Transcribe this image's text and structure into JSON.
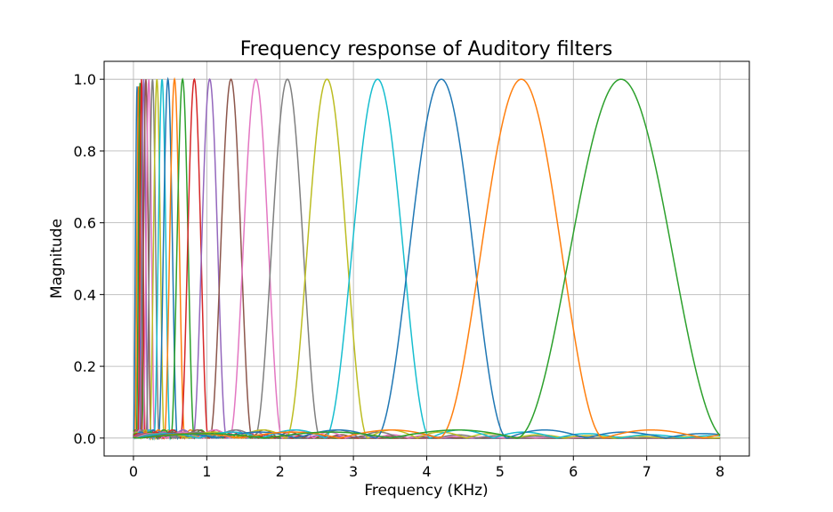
{
  "chart_data": {
    "type": "line",
    "title": "Frequency response of Auditory filters",
    "xlabel": "Frequency (KHz)",
    "ylabel": "Magnitude",
    "xlim": [
      -0.4,
      8.4
    ],
    "ylim": [
      -0.05,
      1.05
    ],
    "xticks": [
      "0",
      "1",
      "2",
      "3",
      "4",
      "5",
      "6",
      "7",
      "8"
    ],
    "yticks": [
      "0.0",
      "0.2",
      "0.4",
      "0.6",
      "0.8",
      "1.0"
    ],
    "grid": true,
    "legend": "none",
    "center_frequencies_khz": [
      0.05,
      0.07,
      0.09,
      0.11,
      0.14,
      0.17,
      0.21,
      0.26,
      0.32,
      0.39,
      0.47,
      0.56,
      0.67,
      0.83,
      1.04,
      1.33,
      1.67,
      2.1,
      2.64,
      3.33,
      4.2,
      5.29,
      6.65
    ],
    "half_widths_khz": [
      0.05,
      0.05,
      0.05,
      0.05,
      0.06,
      0.07,
      0.08,
      0.09,
      0.1,
      0.11,
      0.13,
      0.14,
      0.16,
      0.19,
      0.23,
      0.29,
      0.36,
      0.45,
      0.56,
      0.72,
      0.9,
      1.13,
      1.43
    ],
    "peak_magnitudes": [
      0.98,
      0.98,
      0.99,
      1,
      1,
      1,
      1,
      1,
      1,
      1,
      1,
      1,
      1,
      1,
      1,
      1,
      1,
      1,
      1,
      1,
      1,
      1,
      1
    ],
    "series_colors": [
      "#1f77b4",
      "#ff7f0e",
      "#2ca02c",
      "#d62728",
      "#9467bd",
      "#8c564b",
      "#e377c2",
      "#7f7f7f",
      "#bcbd22",
      "#17becf",
      "#1f77b4",
      "#ff7f0e",
      "#2ca02c",
      "#d62728",
      "#9467bd",
      "#8c564b",
      "#e377c2",
      "#7f7f7f",
      "#bcbd22",
      "#17becf",
      "#1f77b4",
      "#ff7f0e",
      "#2ca02c",
      "#d62728"
    ]
  }
}
